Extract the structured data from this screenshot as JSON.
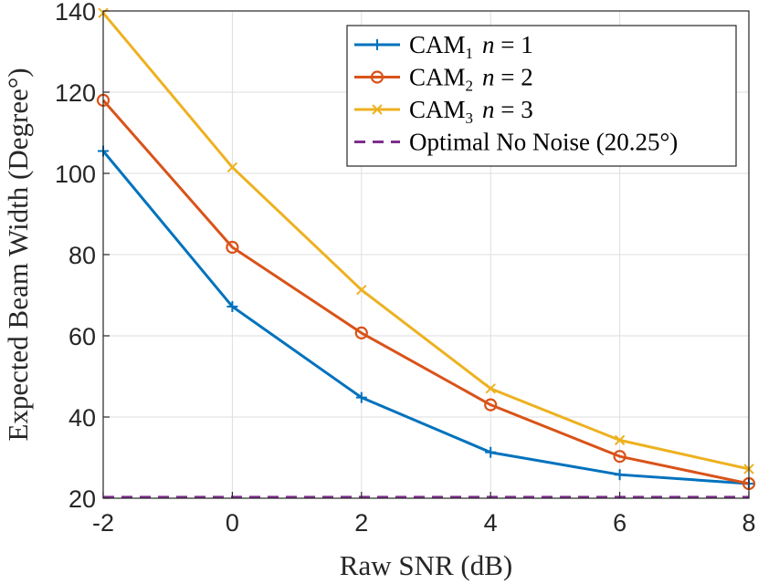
{
  "chart_data": {
    "type": "line",
    "title": "",
    "xlabel": "Raw SNR (dB)",
    "ylabel": "Expected Beam Width (Degree°)",
    "x": [
      -2,
      0,
      2,
      4,
      6,
      8
    ],
    "xlim": [
      -2,
      8
    ],
    "ylim": [
      20,
      140
    ],
    "xticks": [
      "-2",
      "0",
      "2",
      "4",
      "6",
      "8"
    ],
    "yticks": [
      "20",
      "40",
      "60",
      "80",
      "100",
      "120",
      "140"
    ],
    "grid": true,
    "legend_position": "top-right",
    "series": [
      {
        "name": "CAM1 n = 1",
        "legend_base": "CAM",
        "legend_sub": "1",
        "legend_var": "n",
        "legend_eq": " = 1",
        "color": "#0072BD",
        "marker": "plus",
        "values": [
          105.5,
          67.2,
          44.8,
          31.3,
          25.8,
          23.6
        ]
      },
      {
        "name": "CAM2 n = 2",
        "legend_base": "CAM",
        "legend_sub": "2",
        "legend_var": "n",
        "legend_eq": " = 2",
        "color": "#D95319",
        "marker": "circle",
        "values": [
          118.0,
          81.8,
          60.7,
          43.0,
          30.3,
          23.6
        ]
      },
      {
        "name": "CAM3 n = 3",
        "legend_base": "CAM",
        "legend_sub": "3",
        "legend_var": "n",
        "legend_eq": " = 3",
        "color": "#EDB120",
        "marker": "x",
        "values": [
          139.5,
          101.5,
          71.3,
          47.0,
          34.3,
          27.2
        ]
      },
      {
        "name": "Optimal No Noise (20.25°)",
        "legend_text": "Optimal No Noise (20.25°)",
        "color": "#7E2F8E",
        "marker": "none",
        "dashed": true,
        "values": [
          20.25,
          20.25,
          20.25,
          20.25,
          20.25,
          20.25
        ]
      }
    ]
  }
}
